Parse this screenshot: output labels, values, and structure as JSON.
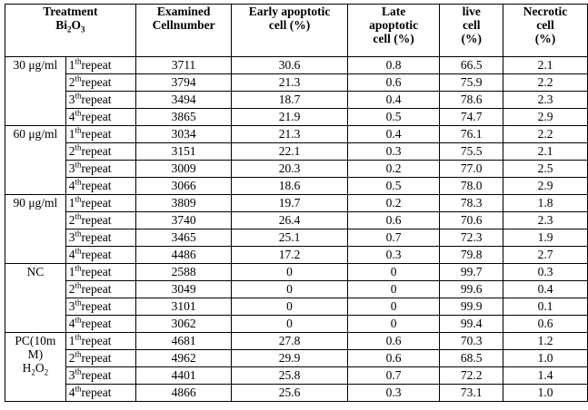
{
  "headers": {
    "treatment_l1": "Treatment",
    "treatment_l2_pre": "Bi",
    "treatment_l2_sub": "2",
    "treatment_l2_mid": "O",
    "treatment_l2_sub2": "3",
    "examined_l1": "Examined",
    "examined_l2": "Cellnumber",
    "early_l1": "Early apoptotic",
    "early_l2": "cell (%)",
    "late_l1": "Late",
    "late_l2": "apoptotic",
    "late_l3": "cell (%)",
    "live_l1": "live",
    "live_l2": "cell",
    "live_l3": "(%)",
    "necrotic_l1": "Necrotic",
    "necrotic_l2": "cell",
    "necrotic_l3": "(%)"
  },
  "repeat_sup": "th",
  "repeat_word": "repeat",
  "pc_label": {
    "l1": "PC(10m",
    "l2": "M)",
    "l3_pre": "H",
    "l3_sub": "2",
    "l3_mid": "O",
    "l3_sub2": "2"
  },
  "groups": [
    {
      "label": "30 μg/ml",
      "rows": [
        {
          "n": "1",
          "cells": "3711",
          "early": "30.6",
          "late": "0.8",
          "live": "66.5",
          "necrotic": "2.1"
        },
        {
          "n": "2",
          "cells": "3794",
          "early": "21.3",
          "late": "0.6",
          "live": "75.9",
          "necrotic": "2.2"
        },
        {
          "n": "3",
          "cells": "3494",
          "early": "18.7",
          "late": "0.4",
          "live": "78.6",
          "necrotic": "2.3"
        },
        {
          "n": "4",
          "cells": "3865",
          "early": "21.9",
          "late": "0.5",
          "live": "74.7",
          "necrotic": "2.9"
        }
      ]
    },
    {
      "label": "60 μg/ml",
      "rows": [
        {
          "n": "1",
          "cells": "3034",
          "early": "21.3",
          "late": "0.4",
          "live": "76.1",
          "necrotic": "2.2"
        },
        {
          "n": "2",
          "cells": "3151",
          "early": "22.1",
          "late": "0.3",
          "live": "75.5",
          "necrotic": "2.1"
        },
        {
          "n": "3",
          "cells": "3009",
          "early": "20.3",
          "late": "0.2",
          "live": "77.0",
          "necrotic": "2.5"
        },
        {
          "n": "4",
          "cells": "3066",
          "early": "18.6",
          "late": "0.5",
          "live": "78.0",
          "necrotic": "2.9"
        }
      ]
    },
    {
      "label": "90 μg/ml",
      "rows": [
        {
          "n": "1",
          "cells": "3809",
          "early": "19.7",
          "late": "0.2",
          "live": "78.3",
          "necrotic": "1.8"
        },
        {
          "n": "2",
          "cells": "3740",
          "early": "26.4",
          "late": "0.6",
          "live": "70.6",
          "necrotic": "2.3"
        },
        {
          "n": "3",
          "cells": "3465",
          "early": "25.1",
          "late": "0.7",
          "live": "72.3",
          "necrotic": "1.9"
        },
        {
          "n": "4",
          "cells": "4486",
          "early": "17.2",
          "late": "0.3",
          "live": "79.8",
          "necrotic": "2.7"
        }
      ]
    },
    {
      "label": "NC",
      "rows": [
        {
          "n": "1",
          "cells": "2588",
          "early": "0",
          "late": "0",
          "live": "99.7",
          "necrotic": "0.3"
        },
        {
          "n": "2",
          "cells": "3049",
          "early": "0",
          "late": "0",
          "live": "99.6",
          "necrotic": "0.4"
        },
        {
          "n": "3",
          "cells": "3101",
          "early": "0",
          "late": "0",
          "live": "99.9",
          "necrotic": "0.1"
        },
        {
          "n": "4",
          "cells": "3062",
          "early": "0",
          "late": "0",
          "live": "99.4",
          "necrotic": "0.6"
        }
      ]
    },
    {
      "label": "",
      "rows": [
        {
          "n": "1",
          "cells": "4681",
          "early": "27.8",
          "late": "0.6",
          "live": "70.3",
          "necrotic": "1.2"
        },
        {
          "n": "2",
          "cells": "4962",
          "early": "29.9",
          "late": "0.6",
          "live": "68.5",
          "necrotic": "1.0"
        },
        {
          "n": "3",
          "cells": "4401",
          "early": "25.8",
          "late": "0.7",
          "live": "72.2",
          "necrotic": "1.4"
        },
        {
          "n": "4",
          "cells": "4866",
          "early": "25.6",
          "late": "0.3",
          "live": "73.1",
          "necrotic": "1.0"
        }
      ]
    }
  ]
}
